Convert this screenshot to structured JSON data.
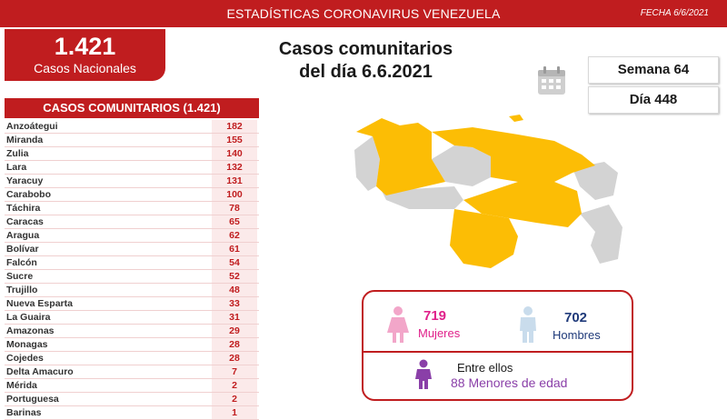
{
  "header": {
    "title": "ESTADÍSTICAS CORONAVIRUS VENEZUELA",
    "date": "FECHA 6/6/2021"
  },
  "total": {
    "value": "1.421",
    "label": "Casos Nacionales"
  },
  "main_title": {
    "line1": "Casos comunitarios",
    "line2": "del día 6.6.2021"
  },
  "info": {
    "week": "Semana 64",
    "day": "Día 448"
  },
  "table": {
    "header": "CASOS COMUNITARIOS (1.421)",
    "rows": [
      {
        "state": "Anzoátegui",
        "value": "182"
      },
      {
        "state": "Miranda",
        "value": "155"
      },
      {
        "state": "Zulia",
        "value": "140"
      },
      {
        "state": "Lara",
        "value": "132"
      },
      {
        "state": "Yaracuy",
        "value": "131"
      },
      {
        "state": "Carabobo",
        "value": "100"
      },
      {
        "state": "Táchira",
        "value": "78"
      },
      {
        "state": "Caracas",
        "value": "65"
      },
      {
        "state": "Aragua",
        "value": "62"
      },
      {
        "state": "Bolívar",
        "value": "61"
      },
      {
        "state": "Falcón",
        "value": "54"
      },
      {
        "state": "Sucre",
        "value": "52"
      },
      {
        "state": "Trujillo",
        "value": "48"
      },
      {
        "state": "Nueva Esparta",
        "value": "33"
      },
      {
        "state": "La Guaira",
        "value": "31"
      },
      {
        "state": "Amazonas",
        "value": "29"
      },
      {
        "state": "Monagas",
        "value": "28"
      },
      {
        "state": "Cojedes",
        "value": "28"
      },
      {
        "state": "Delta Amacuro",
        "value": "7"
      },
      {
        "state": "Mérida",
        "value": "2"
      },
      {
        "state": "Portuguesa",
        "value": "2"
      },
      {
        "state": "Barinas",
        "value": "1"
      }
    ]
  },
  "gender": {
    "women_count": "719",
    "women_label": "Mujeres",
    "men_count": "702",
    "men_label": "Hombres",
    "among_label": "Entre ellos",
    "minors_count": "88",
    "minors_label": "Menores de edad"
  },
  "colors": {
    "brand_red": "#c01d1f",
    "map_active": "#fcbd05",
    "map_inactive": "#d3d3d3",
    "women": "#e0208a",
    "men": "#1f3a7a",
    "minors": "#8a3fa8"
  },
  "icons": [
    "calendar-icon",
    "female-person-icon",
    "male-person-icon",
    "child-person-icon",
    "venezuela-map"
  ]
}
